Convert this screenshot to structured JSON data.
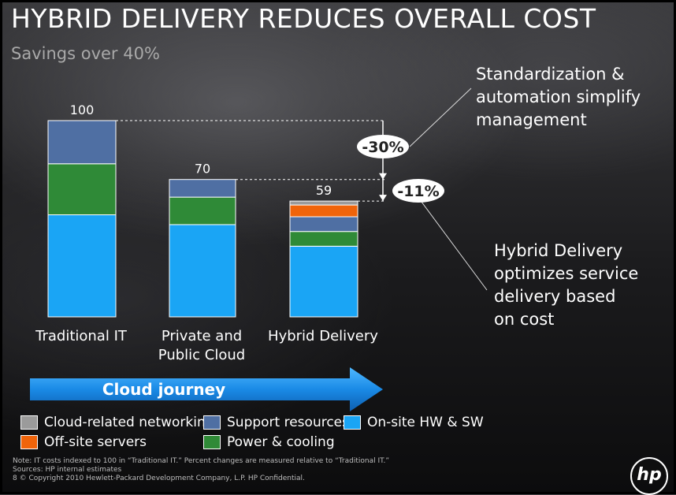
{
  "title": "HYBRID DELIVERY REDUCES OVERALL COST",
  "subtitle": "Savings over 40%",
  "callouts": {
    "top": "Standardization &\nautomation simplify\nmanagement",
    "bottom": "Hybrid Delivery\noptimizes service\ndelivery based\non cost"
  },
  "journey_label": "Cloud journey",
  "colors": {
    "cloud_networking": "#9b9b9b",
    "offsite_servers": "#f0640a",
    "support_resources": "#4f6fa3",
    "power_cooling": "#2f8a37",
    "onsite_hw_sw": "#1aa5f5"
  },
  "legend": [
    {
      "label": "Cloud-related networking",
      "color": "#9b9b9b"
    },
    {
      "label": "Support resources",
      "color": "#4f6fa3"
    },
    {
      "label": "On-site HW & SW",
      "color": "#1aa5f5"
    },
    {
      "label": "Off-site servers",
      "color": "#f0640a"
    },
    {
      "label": "Power & cooling",
      "color": "#2f8a37"
    }
  ],
  "chart_data": {
    "type": "bar",
    "stacked": true,
    "categories": [
      "Traditional IT",
      "Private and\nPublic Cloud",
      "Hybrid Delivery"
    ],
    "totals": [
      100,
      70,
      59
    ],
    "series": [
      {
        "name": "On-site HW & SW",
        "values": [
          52,
          47,
          36
        ]
      },
      {
        "name": "Power & cooling",
        "values": [
          26,
          14,
          7.5
        ]
      },
      {
        "name": "Support resources",
        "values": [
          22,
          9,
          7.5
        ]
      },
      {
        "name": "Off-site servers",
        "values": [
          0,
          0,
          6
        ]
      },
      {
        "name": "Cloud-related networking",
        "values": [
          0,
          0,
          2
        ]
      }
    ],
    "annotations": [
      {
        "label": "-30%",
        "from": 100,
        "to": 70
      },
      {
        "label": "-11%",
        "from": 70,
        "to": 59
      }
    ],
    "ylim": [
      0,
      100
    ],
    "grid": false
  },
  "notes": {
    "line1": "Note: IT costs indexed to 100 in “Traditional IT.”  Percent changes are measured relative to “Traditional IT.”",
    "line2": "Sources:   HP internal estimates",
    "line3": "8      © Copyright 2010 Hewlett-Packard Development Company, L.P.  HP Confidential."
  },
  "logo": "hp"
}
